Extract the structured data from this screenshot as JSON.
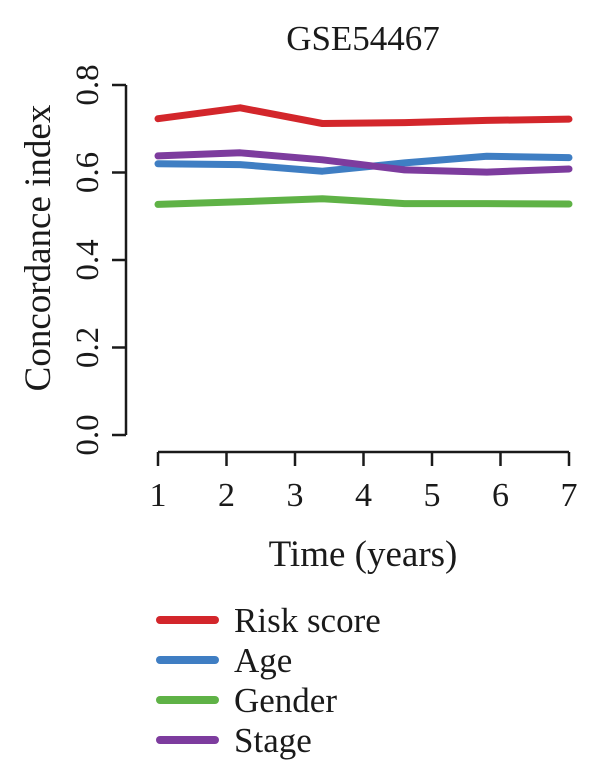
{
  "chart_data": {
    "type": "line",
    "title": "GSE54467",
    "xlabel": "Time (years)",
    "ylabel": "Concordance index",
    "x": [
      1,
      2.2,
      3.4,
      4.6,
      5.8,
      7
    ],
    "xticks": [
      "1",
      "2",
      "3",
      "4",
      "5",
      "6",
      "7"
    ],
    "yticks": [
      "0.0",
      "0.2",
      "0.4",
      "0.6",
      "0.8"
    ],
    "xlim": [
      1,
      7
    ],
    "ylim": [
      0,
      0.8
    ],
    "grid": false,
    "legend_position": "bottom",
    "series": [
      {
        "name": "Risk score",
        "color": "#d3262b",
        "values": [
          0.723,
          0.748,
          0.712,
          0.714,
          0.719,
          0.722
        ]
      },
      {
        "name": "Age",
        "color": "#3f7ec3",
        "values": [
          0.62,
          0.618,
          0.603,
          0.622,
          0.637,
          0.634
        ]
      },
      {
        "name": "Gender",
        "color": "#5fb246",
        "values": [
          0.527,
          0.533,
          0.54,
          0.529,
          0.529,
          0.528
        ]
      },
      {
        "name": "Stage",
        "color": "#7d3c9e",
        "values": [
          0.638,
          0.645,
          0.629,
          0.606,
          0.601,
          0.608
        ]
      }
    ]
  }
}
